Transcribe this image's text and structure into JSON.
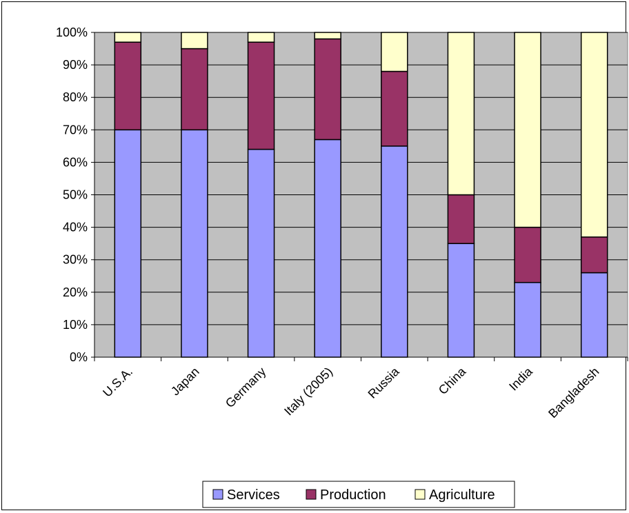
{
  "chart_data": {
    "type": "bar",
    "stacked": true,
    "percent_stacked": true,
    "categories": [
      "U.S.A.",
      "Japan",
      "Germany",
      "Italy (2005)",
      "Russia",
      "China",
      "India",
      "Bangladesh"
    ],
    "series": [
      {
        "name": "Services",
        "color": "#9999ff",
        "values": [
          70,
          70,
          64,
          67,
          65,
          35,
          23,
          26
        ]
      },
      {
        "name": "Production",
        "color": "#993366",
        "values": [
          27,
          25,
          33,
          31,
          23,
          15,
          17,
          11
        ]
      },
      {
        "name": "Agriculture",
        "color": "#ffffcc",
        "values": [
          3,
          5,
          3,
          2,
          12,
          50,
          60,
          63
        ]
      }
    ],
    "ylim": [
      0,
      100
    ],
    "yticks": [
      "0%",
      "10%",
      "20%",
      "30%",
      "40%",
      "50%",
      "60%",
      "70%",
      "80%",
      "90%",
      "100%"
    ],
    "plot_background": "#c0c0c0",
    "grid": true,
    "legend_position": "bottom"
  }
}
